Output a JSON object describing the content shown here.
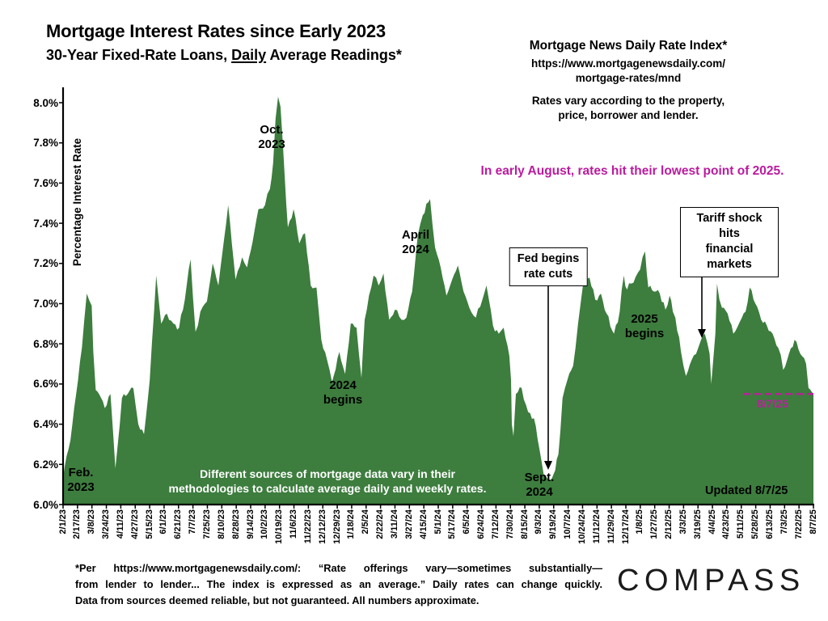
{
  "header": {
    "title": "Mortgage Interest Rates since Early 2023",
    "subtitle_prefix": "30-Year Fixed-Rate Loans, ",
    "subtitle_underline": "Daily",
    "subtitle_suffix": " Average Readings*"
  },
  "source": {
    "title": "Mortgage News Daily Rate Index*",
    "url_line1": "https://www.mortgagenewsdaily.com/",
    "url_line2": "mortgage-rates/mnd",
    "note_line1": "Rates vary according to the property,",
    "note_line2": "price, borrower and lender.",
    "highlight": "In early August, rates hit their lowest point of 2025.",
    "highlight_color": "#bb1b9e"
  },
  "chart": {
    "ylabel": "Percentage Interest Rate",
    "area_color": "#3d7d3e",
    "axis_color": "#000000",
    "latest_line_color": "#b9219b",
    "annotations": {
      "feb_2023": {
        "line1": "Feb.",
        "line2": "2023"
      },
      "oct_2023": {
        "line1": "Oct.",
        "line2": "2023"
      },
      "begins_2024": {
        "line1": "2024",
        "line2": "begins"
      },
      "april_2024": {
        "line1": "April",
        "line2": "2024"
      },
      "sept_2024": {
        "line1": "Sept.",
        "line2": "2024"
      },
      "begins_2025": {
        "line1": "2025",
        "line2": "begins"
      },
      "fed_box": {
        "line1": "Fed begins",
        "line2": "rate cuts"
      },
      "tariff_box": {
        "line1": "Tariff shock hits",
        "line2": "financial markets"
      },
      "methodology_line1": "Different sources of mortgage data vary in their",
      "methodology_line2": "methodologies to calculate average daily and weekly rates.",
      "updated": "Updated 8/7/25",
      "latest_label": "8/7/25",
      "latest_value": 6.55
    }
  },
  "chart_data": {
    "type": "area",
    "title": "Mortgage Interest Rates since Early 2023",
    "subtitle": "30-Year Fixed-Rate Loans, Daily Average Readings",
    "ylabel": "Percentage Interest Rate",
    "ylim": [
      6.0,
      8.0
    ],
    "ytick_step": 0.2,
    "y_tick_labels": [
      "8.0%",
      "7.8%",
      "7.6%",
      "7.4%",
      "7.2%",
      "7.0%",
      "6.8%",
      "6.6%",
      "6.4%",
      "6.2%",
      "6.0%"
    ],
    "grid": false,
    "legend": "none",
    "x_start_date": "2/1/23",
    "x_end_date": "8/7/25",
    "x_total_days": 918,
    "x_tick_labels": [
      "2/1/23",
      "2/17/23",
      "3/8/23",
      "3/24/23",
      "4/11/23",
      "4/27/23",
      "5/15/23",
      "6/1/23",
      "6/21/23",
      "7/7/23",
      "7/25/23",
      "8/10/23",
      "8/28/23",
      "9/14/23",
      "10/2/23",
      "10/19/23",
      "11/6/23",
      "11/22/23",
      "12/12/23",
      "12/29/23",
      "1/18/24",
      "2/5/24",
      "2/22/24",
      "3/11/24",
      "3/27/24",
      "4/15/24",
      "5/1/24",
      "5/17/24",
      "6/5/24",
      "6/24/24",
      "7/12/24",
      "7/30/24",
      "8/15/24",
      "9/3/24",
      "9/19/24",
      "10/7/24",
      "10/24/24",
      "11/12/24",
      "11/29/24",
      "12/17/24",
      "1/8/25",
      "1/27/25",
      "2/12/25",
      "3/3/25",
      "3/19/25",
      "4/4/25",
      "4/23/25",
      "5/11/25",
      "5/28/25",
      "6/13/25",
      "7/3/25",
      "7/22/25",
      "8/7/25"
    ],
    "series": [
      {
        "name": "30-Year Fixed Rate, Daily Average (Mortgage News Daily Index)",
        "unit": "%",
        "points_day_value": [
          [
            0,
            6.13
          ],
          [
            2,
            6.19
          ],
          [
            9,
            6.32
          ],
          [
            16,
            6.55
          ],
          [
            23,
            6.78
          ],
          [
            29,
            7.05
          ],
          [
            35,
            6.99
          ],
          [
            37,
            6.76
          ],
          [
            40,
            6.57
          ],
          [
            44,
            6.55
          ],
          [
            51,
            6.48
          ],
          [
            58,
            6.55
          ],
          [
            64,
            6.18
          ],
          [
            72,
            6.53
          ],
          [
            79,
            6.55
          ],
          [
            86,
            6.58
          ],
          [
            92,
            6.4
          ],
          [
            99,
            6.35
          ],
          [
            106,
            6.62
          ],
          [
            114,
            7.14
          ],
          [
            120,
            6.9
          ],
          [
            127,
            6.95
          ],
          [
            135,
            6.9
          ],
          [
            142,
            6.88
          ],
          [
            149,
            7.02
          ],
          [
            156,
            7.22
          ],
          [
            162,
            6.86
          ],
          [
            168,
            6.96
          ],
          [
            176,
            7.01
          ],
          [
            183,
            7.2
          ],
          [
            190,
            7.09
          ],
          [
            197,
            7.32
          ],
          [
            202,
            7.49
          ],
          [
            211,
            7.12
          ],
          [
            219,
            7.23
          ],
          [
            225,
            7.18
          ],
          [
            232,
            7.31
          ],
          [
            239,
            7.47
          ],
          [
            247,
            7.49
          ],
          [
            253,
            7.57
          ],
          [
            257,
            7.7
          ],
          [
            260,
            7.92
          ],
          [
            263,
            8.03
          ],
          [
            266,
            7.98
          ],
          [
            269,
            7.79
          ],
          [
            271,
            7.64
          ],
          [
            275,
            7.38
          ],
          [
            282,
            7.47
          ],
          [
            289,
            7.3
          ],
          [
            296,
            7.35
          ],
          [
            303,
            7.09
          ],
          [
            310,
            7.08
          ],
          [
            313,
            6.95
          ],
          [
            316,
            6.82
          ],
          [
            323,
            6.72
          ],
          [
            329,
            6.61
          ],
          [
            338,
            6.76
          ],
          [
            345,
            6.65
          ],
          [
            352,
            6.9
          ],
          [
            359,
            6.88
          ],
          [
            365,
            6.63
          ],
          [
            369,
            6.92
          ],
          [
            377,
            7.08
          ],
          [
            380,
            7.14
          ],
          [
            386,
            7.09
          ],
          [
            392,
            7.15
          ],
          [
            399,
            6.92
          ],
          [
            406,
            6.97
          ],
          [
            414,
            6.92
          ],
          [
            420,
            6.93
          ],
          [
            427,
            7.06
          ],
          [
            434,
            7.34
          ],
          [
            440,
            7.44
          ],
          [
            449,
            7.52
          ],
          [
            455,
            7.28
          ],
          [
            462,
            7.18
          ],
          [
            469,
            7.04
          ],
          [
            476,
            7.12
          ],
          [
            483,
            7.19
          ],
          [
            490,
            7.06
          ],
          [
            497,
            6.98
          ],
          [
            505,
            6.93
          ],
          [
            513,
            7.02
          ],
          [
            518,
            7.09
          ],
          [
            526,
            6.89
          ],
          [
            533,
            6.85
          ],
          [
            539,
            6.88
          ],
          [
            546,
            6.74
          ],
          [
            548,
            6.62
          ],
          [
            549,
            6.4
          ],
          [
            551,
            6.34
          ],
          [
            554,
            6.55
          ],
          [
            561,
            6.58
          ],
          [
            569,
            6.46
          ],
          [
            576,
            6.43
          ],
          [
            583,
            6.27
          ],
          [
            588,
            6.15
          ],
          [
            594,
            6.12
          ],
          [
            598,
            6.13
          ],
          [
            602,
            6.17
          ],
          [
            606,
            6.25
          ],
          [
            611,
            6.53
          ],
          [
            617,
            6.62
          ],
          [
            624,
            6.69
          ],
          [
            630,
            6.9
          ],
          [
            636,
            7.09
          ],
          [
            644,
            7.13
          ],
          [
            651,
            7.02
          ],
          [
            658,
            7.05
          ],
          [
            665,
            6.95
          ],
          [
            674,
            6.85
          ],
          [
            681,
            6.96
          ],
          [
            686,
            7.14
          ],
          [
            690,
            7.07
          ],
          [
            695,
            7.1
          ],
          [
            706,
            7.17
          ],
          [
            712,
            7.26
          ],
          [
            716,
            7.08
          ],
          [
            723,
            7.06
          ],
          [
            730,
            7.05
          ],
          [
            737,
            6.97
          ],
          [
            742,
            7.04
          ],
          [
            746,
            6.96
          ],
          [
            749,
            6.93
          ],
          [
            756,
            6.76
          ],
          [
            762,
            6.64
          ],
          [
            769,
            6.72
          ],
          [
            777,
            6.78
          ],
          [
            785,
            6.85
          ],
          [
            791,
            6.75
          ],
          [
            793,
            6.6
          ],
          [
            798,
            6.85
          ],
          [
            800,
            7.1
          ],
          [
            806,
            6.98
          ],
          [
            813,
            6.95
          ],
          [
            820,
            6.85
          ],
          [
            828,
            6.91
          ],
          [
            835,
            6.96
          ],
          [
            840,
            7.08
          ],
          [
            847,
            7.0
          ],
          [
            854,
            6.92
          ],
          [
            861,
            6.89
          ],
          [
            868,
            6.85
          ],
          [
            875,
            6.78
          ],
          [
            881,
            6.67
          ],
          [
            888,
            6.75
          ],
          [
            895,
            6.82
          ],
          [
            902,
            6.75
          ],
          [
            909,
            6.7
          ],
          [
            912,
            6.58
          ],
          [
            916,
            6.56
          ],
          [
            918,
            6.55
          ]
        ]
      }
    ]
  },
  "footer": {
    "line1": "*Per https://www.mortgagenewsdaily.com/: “Rate offerings vary—sometimes substantially—",
    "line2": "from lender to lender... The index is expressed as an average.” Daily rates can change quickly.",
    "line3": "Data from sources deemed reliable, but not guaranteed. All numbers approximate.",
    "logo": "COMPASS"
  }
}
